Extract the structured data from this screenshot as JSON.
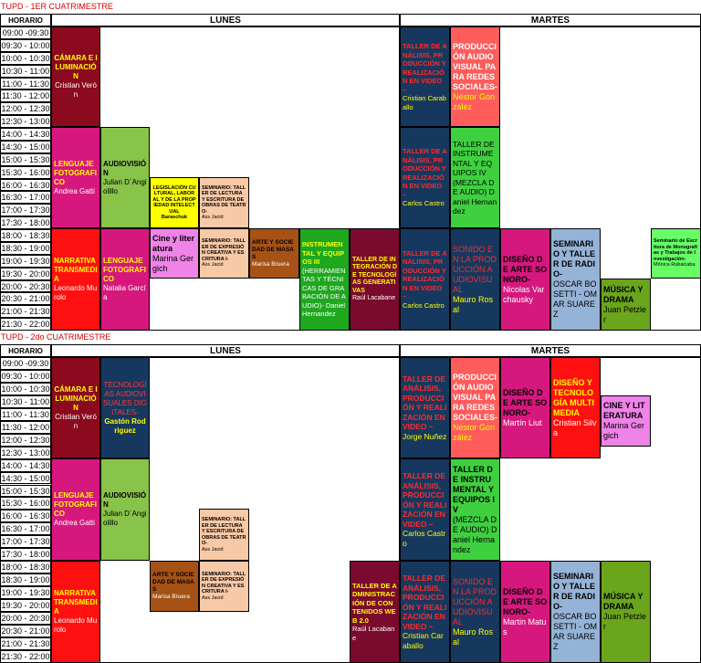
{
  "sem1": {
    "title": "TUPD - 1ER CUATRIMESTRE",
    "horario": "HORARIO",
    "lunes": "LUNES",
    "martes": "MARTES",
    "times": [
      "09:00 -09:30",
      "09:30 - 10:00",
      "10:00 - 10:30",
      "10:30 - 11:00",
      "11:00 - 11:30",
      "11:30 - 12:00",
      "12:00 - 12:30",
      "12:30 - 13:00",
      "14:00 - 14:30",
      "14:30 - 15:00",
      "15:00 - 15:30",
      "15:30 - 16:00",
      "16:00 - 16:30",
      "16:30 - 17:00",
      "17:00 - 17:30",
      "17:30 - 18:00",
      "18:00 - 18:30",
      "18:30 - 19:00",
      "19:00 - 19:30",
      "19:30 - 20:00",
      "20:00 - 20:30",
      "20:30 - 21:00",
      "21:00 - 21:30",
      "21:30 - 22:00"
    ],
    "events": {
      "camara": {
        "title": "CÁMARA E ILUMINACIÓN",
        "name": "Cristian Verón"
      },
      "lenguaje": {
        "title": "LENGUAJE FOTOGRAFICO",
        "name": "Andrea Gatti"
      },
      "audiovision": {
        "title": "AUDIOVISIÓN",
        "name": "Julian D´Angiolillo"
      },
      "legislacion": {
        "title": "LEGISLACIÓN CULTURAL, LABORAL Y DE LA PROPIEDAD INTELECTUAL",
        "name": "Baraschuk"
      },
      "sem_lectura": {
        "title": "SEMINARIO: TALLER DE LECTURA Y ESCRITURA DE OBRAS DE TEATRO-",
        "name": "Ass Jacid"
      },
      "narrativa": {
        "title": "NARRATIVA TRANSMEDIA",
        "name": "Leonardo Murolo"
      },
      "lenguaje2": {
        "title": "LENGUAJE FOTOGRAFICO",
        "name": "Natalia García"
      },
      "cine": {
        "title": "Cine y literatura",
        "name": "Marina Gergich"
      },
      "sem_expresion": {
        "title": "SEMINARIO: TALLER DE EXPRESIÓN CREATIVA Y ESCRITURA I-",
        "name": "Ass Jacid"
      },
      "arte": {
        "title": "ARTE Y SOCIEDAD DE MASAS",
        "name": "Marisa Bruera"
      },
      "instrumental": {
        "title": "INSTRUMENTAL Y EQUIPOS III",
        "name": "(HERRAMIENTAS Y TÉCNICAS DE GRABACIÓN DE AUDIO)- Daniel Hernandez"
      },
      "taller_integracion": {
        "title": "TALLER DE INTEGRACIÓN DE TECNOLOGÍAS GENERATIVAS",
        "name": "Raúl Lacabane"
      },
      "taller_analisis_a": {
        "title": "TALLER DE ANÁLISIS, PRODUCCIÓN Y REALIZACIÓN EN VIDEO –",
        "name": "Cristian Caraballo"
      },
      "produccion": {
        "title": "PRODUCCIÓN AUDIOVISUAL PARA REDES SOCIALES-",
        "name": "Néstor González"
      },
      "taller_analisis_b": {
        "title": "TALLER DE ANÁLISIS, PRODUCCIÓN Y REALIZACIÓN EN VIDEO –",
        "name": "Carlos Castro"
      },
      "instrumental4": {
        "title": "TALLER DE INSTRUMENTAL Y EQUIPOS IV",
        "name": "(MEZCLA DE AUDIO) Daniel Hernandez"
      },
      "taller_analisis_c": {
        "title": "TALLER DE ANÁLISIS, PRODUCCIÓN Y REALIZACIÓN EN VIDEO –",
        "name": "Carlos Castro"
      },
      "sonido": {
        "title": "SONIDO EN LA PRODUCCIÓN AUDIOVISUAL",
        "name": "Mauro Rosal"
      },
      "diseno": {
        "title": "DISEÑO DE ARTE SONORO-",
        "name": "Nicolas Varchausky"
      },
      "seminario_radio": {
        "title": "SEMINARIO Y TALLER DE RADIO-",
        "name": "OSCAR BOSETTI - OMAR SUAREZ"
      },
      "musica": {
        "title": "MÚSICA Y DRAMA",
        "name": "Juan Petzler"
      },
      "seminario_monografias": {
        "title": "Seminario de Escritura de Monografías y Trabajos de Investigación-",
        "name": "Mónica Rubalcaba"
      }
    }
  },
  "sem2": {
    "title": "TUPD - 2do CUATRIMESTRE",
    "horario": "HORARIO",
    "lunes": "LUNES",
    "martes": "MARTES",
    "times": [
      "09:00 -09:30",
      "09:30 - 10:00",
      "10:00 - 10:30",
      "10:30 - 11:00",
      "11:00 - 11:30",
      "11:30 - 12:00",
      "12:00 - 12:30",
      "12:30 - 13:00",
      "14:00 - 14:30",
      "14:30 - 15:00",
      "15:00 - 15:30",
      "15:30 - 16:00",
      "16:00 - 16:30",
      "16:30 - 17:00",
      "17:00 - 17:30",
      "17:30 - 18:00",
      "18:00 - 18:30",
      "18:30 - 19:00",
      "19:00 - 19:30",
      "19:30 - 20:00",
      "20:00 - 20:30",
      "20:30 - 21:00",
      "21:00 - 21:30",
      "21:30 - 22:00"
    ],
    "events": {
      "camara": {
        "title": "CÁMARA E ILUMINACIÓN",
        "name": "Cristian Verón"
      },
      "tecnologias": {
        "title": "TECNOLOGÍAS AUDIOVISUALES DIGITALES-",
        "name": "Gastón Rodriguez"
      },
      "lenguaje": {
        "title": "LENGUAJE FOTOGRAFICO",
        "name": "Andrea Gatti"
      },
      "audiovision": {
        "title": "AUDIOVISIÓN",
        "name": "Julian D´Angiolillo"
      },
      "sem_lectura": {
        "title": "SEMINARIO: TALLER DE LECTURA Y ESCRITURA DE OBRAS DE TEATRO-",
        "name": "Ass Jacid"
      },
      "narrativa": {
        "title": "NARRATIVA TRANSMEDIA",
        "name": "Leonardo Murolo"
      },
      "arte": {
        "title": "ARTE Y SOCIEDAD DE MASAS",
        "name": "Marisa Bruera"
      },
      "sem_expresion": {
        "title": "SEMINARIO: TALLER DE EXPRESIÓN CREATIVA Y ESCRITURA I-",
        "name": "Ass Jacid"
      },
      "taller_admin": {
        "title": "TALLER DE ADMINISTRACIÓN DE CONTENIDOS WEB 2.0",
        "name": "Raúl Lacabane"
      },
      "taller_analisis_a": {
        "title": "TALLER DE ANÁLISIS, PRODUCCIÓN Y REALIZACIÓN EN VIDEO –",
        "name": "Jorge Nuñez"
      },
      "produccion": {
        "title": "PRODUCCIÓN AUDIOVISUAL PARA REDES SOCIALES-",
        "name": "Néstor González"
      },
      "diseno_a": {
        "title": "DISEÑO DE ARTE SONORO-",
        "name": "Martín Liut"
      },
      "diseno_tec": {
        "title": "DISEÑO Y TECNOLOGÍA MULTIMEDIA",
        "name": "Cristian Silva"
      },
      "cine": {
        "title": "CINE Y LITERATURA",
        "name": "Marina Gergich"
      },
      "taller_analisis_b": {
        "title": "TALLER DE ANÁLISIS, PRODUCCIÓN Y REALIZACIÓN EN VIDEO –",
        "name": "Carlos Castro"
      },
      "instrumental4": {
        "title": "TALLER DE INSTRUMENTAL Y EQUIPOS IV",
        "name": "(MEZCLA DE AUDIO) Daniel Hernandez"
      },
      "taller_analisis_c": {
        "title": "TALLER DE ANÁLISIS, PRODUCCIÓN Y REALIZACIÓN EN VIDEO –",
        "name": "Cristian Caraballo"
      },
      "sonido": {
        "title": "SONIDO EN LA PRODUCCIÓN AUDIOVISUAL",
        "name": "Mauro Rosal"
      },
      "diseno_b": {
        "title": "DISEÑO DE ARTE SONORO-",
        "name": "Martin Matus"
      },
      "seminario_radio": {
        "title": "SEMINARIO Y TALLER DE RADIO-",
        "name": "OSCAR BOSETTI - OMAR SUAREZ"
      },
      "musica": {
        "title": "MÚSICA Y DRAMA",
        "name": "Juan Petzler"
      }
    }
  },
  "colors": {
    "maroon": "#8b0a1e",
    "magenta": "#d6187e",
    "green": "#88c34a",
    "yellow": "#ffff00",
    "peach": "#f8c9a6",
    "red": "#ff1010",
    "pink": "#ef83e8",
    "brown": "#a65216",
    "darkgreen": "#1fa81f",
    "darkmaroon": "#7a0a2e",
    "navy": "#17385e",
    "salmon": "#ff5c5c",
    "lightgreen": "#3fd03f",
    "blue": "#95b3d7",
    "olive": "#6aa51c",
    "brightgreen": "#66ff66"
  }
}
